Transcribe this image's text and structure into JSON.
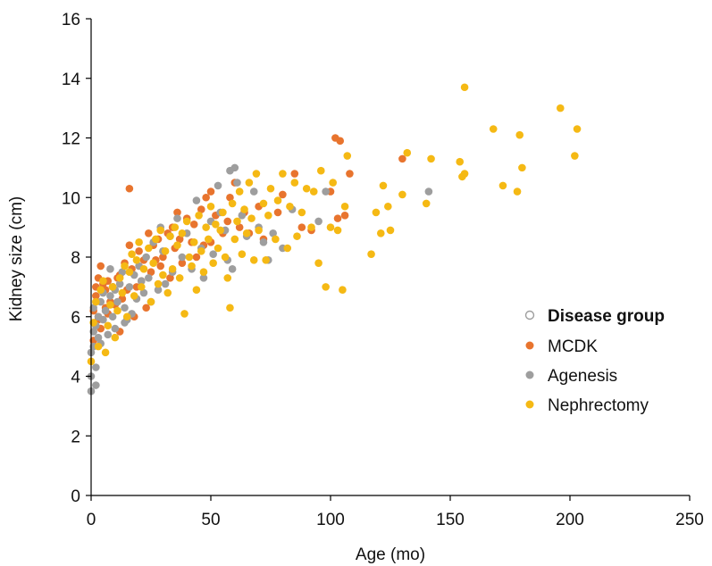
{
  "chart_data": {
    "type": "scatter",
    "title": "",
    "xlabel": "Age (mo)",
    "ylabel": "Kidney size (cm)",
    "xlim": [
      0,
      250
    ],
    "ylim": [
      0,
      16
    ],
    "xticks": [
      "0",
      "50",
      "100",
      "150",
      "200",
      "250"
    ],
    "yticks": [
      "0",
      "2",
      "4",
      "6",
      "8",
      "10",
      "12",
      "14",
      "16"
    ],
    "grid": false,
    "legend": {
      "title": "Disease group",
      "placement": "right"
    },
    "series": [
      {
        "name": "MCDK",
        "color": "#E8742E",
        "points": [
          [
            1,
            5.2
          ],
          [
            1,
            6.2
          ],
          [
            2,
            7.0
          ],
          [
            2,
            6.7
          ],
          [
            3,
            7.3
          ],
          [
            3,
            6.0
          ],
          [
            4,
            7.7
          ],
          [
            4,
            5.6
          ],
          [
            5,
            7.1
          ],
          [
            6,
            6.9
          ],
          [
            6,
            6.3
          ],
          [
            7,
            7.2
          ],
          [
            8,
            6.5
          ],
          [
            9,
            7.0
          ],
          [
            10,
            6.4
          ],
          [
            11,
            7.3
          ],
          [
            12,
            7.4
          ],
          [
            13,
            6.6
          ],
          [
            14,
            7.8
          ],
          [
            15,
            6.9
          ],
          [
            16,
            10.3
          ],
          [
            16,
            8.4
          ],
          [
            17,
            7.6
          ],
          [
            18,
            6.0
          ],
          [
            20,
            8.2
          ],
          [
            21,
            7.2
          ],
          [
            22,
            7.9
          ],
          [
            23,
            6.3
          ],
          [
            24,
            8.8
          ],
          [
            25,
            7.5
          ],
          [
            26,
            8.4
          ],
          [
            28,
            8.6
          ],
          [
            29,
            7.7
          ],
          [
            30,
            8.0
          ],
          [
            32,
            8.8
          ],
          [
            33,
            7.3
          ],
          [
            34,
            9.0
          ],
          [
            35,
            8.3
          ],
          [
            36,
            9.5
          ],
          [
            37,
            8.6
          ],
          [
            38,
            7.8
          ],
          [
            40,
            9.3
          ],
          [
            42,
            8.5
          ],
          [
            43,
            9.1
          ],
          [
            44,
            8.0
          ],
          [
            46,
            9.6
          ],
          [
            47,
            8.4
          ],
          [
            48,
            10.0
          ],
          [
            50,
            10.2
          ],
          [
            50,
            8.5
          ],
          [
            52,
            9.4
          ],
          [
            55,
            8.8
          ],
          [
            57,
            9.2
          ],
          [
            58,
            10.0
          ],
          [
            60,
            10.5
          ],
          [
            62,
            9.0
          ],
          [
            64,
            9.5
          ],
          [
            66,
            8.8
          ],
          [
            70,
            9.7
          ],
          [
            72,
            8.6
          ],
          [
            78,
            9.5
          ],
          [
            80,
            10.1
          ],
          [
            85,
            10.8
          ],
          [
            88,
            9.0
          ],
          [
            92,
            8.9
          ],
          [
            100,
            10.2
          ],
          [
            102,
            12.0
          ],
          [
            103,
            9.3
          ],
          [
            104,
            11.9
          ],
          [
            106,
            9.4
          ],
          [
            108,
            10.8
          ],
          [
            130,
            11.3
          ],
          [
            3,
            5.9
          ],
          [
            7,
            6.1
          ],
          [
            12,
            5.5
          ],
          [
            19,
            7.0
          ],
          [
            27,
            7.9
          ]
        ]
      },
      {
        "name": "Agenesis",
        "color": "#9E9E9E",
        "points": [
          [
            0,
            3.5
          ],
          [
            0,
            4.0
          ],
          [
            0,
            4.8
          ],
          [
            1,
            5.0
          ],
          [
            1,
            5.5
          ],
          [
            1,
            6.3
          ],
          [
            2,
            3.7
          ],
          [
            2,
            4.3
          ],
          [
            2,
            5.7
          ],
          [
            3,
            6.0
          ],
          [
            3,
            5.3
          ],
          [
            4,
            6.5
          ],
          [
            4,
            5.1
          ],
          [
            5,
            5.9
          ],
          [
            5,
            6.8
          ],
          [
            6,
            6.2
          ],
          [
            7,
            5.4
          ],
          [
            8,
            7.6
          ],
          [
            8,
            6.7
          ],
          [
            9,
            6.0
          ],
          [
            10,
            6.9
          ],
          [
            10,
            5.6
          ],
          [
            11,
            6.5
          ],
          [
            12,
            7.1
          ],
          [
            13,
            7.5
          ],
          [
            14,
            6.3
          ],
          [
            15,
            5.9
          ],
          [
            16,
            7.0
          ],
          [
            17,
            6.1
          ],
          [
            18,
            7.4
          ],
          [
            19,
            6.6
          ],
          [
            20,
            7.7
          ],
          [
            21,
            7.2
          ],
          [
            22,
            6.8
          ],
          [
            23,
            8.0
          ],
          [
            24,
            7.3
          ],
          [
            26,
            8.5
          ],
          [
            28,
            6.9
          ],
          [
            29,
            9.0
          ],
          [
            30,
            8.2
          ],
          [
            31,
            7.1
          ],
          [
            33,
            8.7
          ],
          [
            34,
            7.5
          ],
          [
            36,
            9.3
          ],
          [
            38,
            8.0
          ],
          [
            40,
            8.8
          ],
          [
            42,
            7.6
          ],
          [
            44,
            9.9
          ],
          [
            46,
            8.3
          ],
          [
            47,
            7.3
          ],
          [
            50,
            9.2
          ],
          [
            51,
            8.1
          ],
          [
            53,
            10.4
          ],
          [
            54,
            9.5
          ],
          [
            56,
            8.9
          ],
          [
            57,
            7.9
          ],
          [
            58,
            10.9
          ],
          [
            59,
            7.6
          ],
          [
            60,
            11.0
          ],
          [
            61,
            10.5
          ],
          [
            63,
            9.4
          ],
          [
            65,
            8.7
          ],
          [
            68,
            10.2
          ],
          [
            70,
            9.0
          ],
          [
            72,
            8.5
          ],
          [
            74,
            7.9
          ],
          [
            76,
            8.8
          ],
          [
            80,
            8.3
          ],
          [
            84,
            9.6
          ],
          [
            95,
            9.2
          ],
          [
            98,
            10.2
          ],
          [
            141,
            10.2
          ],
          [
            9,
            7.0
          ],
          [
            14,
            5.8
          ],
          [
            25,
            6.5
          ]
        ]
      },
      {
        "name": "Nephrectomy",
        "color": "#F5B914",
        "points": [
          [
            0,
            4.5
          ],
          [
            1,
            5.8
          ],
          [
            2,
            6.5
          ],
          [
            3,
            5.0
          ],
          [
            4,
            6.9
          ],
          [
            5,
            7.2
          ],
          [
            6,
            4.8
          ],
          [
            7,
            5.7
          ],
          [
            8,
            6.4
          ],
          [
            9,
            7.0
          ],
          [
            10,
            5.3
          ],
          [
            11,
            6.2
          ],
          [
            12,
            7.3
          ],
          [
            13,
            6.8
          ],
          [
            14,
            7.7
          ],
          [
            15,
            6.0
          ],
          [
            16,
            7.5
          ],
          [
            17,
            8.1
          ],
          [
            18,
            6.7
          ],
          [
            19,
            7.9
          ],
          [
            20,
            8.5
          ],
          [
            21,
            7.0
          ],
          [
            22,
            7.6
          ],
          [
            24,
            8.3
          ],
          [
            25,
            6.5
          ],
          [
            26,
            7.8
          ],
          [
            27,
            8.6
          ],
          [
            28,
            7.1
          ],
          [
            29,
            8.9
          ],
          [
            30,
            7.4
          ],
          [
            31,
            8.2
          ],
          [
            32,
            6.8
          ],
          [
            33,
            8.7
          ],
          [
            34,
            7.6
          ],
          [
            35,
            9.0
          ],
          [
            36,
            8.4
          ],
          [
            37,
            7.3
          ],
          [
            38,
            8.8
          ],
          [
            39,
            6.1
          ],
          [
            40,
            9.2
          ],
          [
            41,
            8.0
          ],
          [
            42,
            7.7
          ],
          [
            43,
            8.5
          ],
          [
            44,
            6.9
          ],
          [
            45,
            9.4
          ],
          [
            46,
            8.2
          ],
          [
            47,
            7.5
          ],
          [
            48,
            9.0
          ],
          [
            49,
            8.6
          ],
          [
            50,
            9.7
          ],
          [
            51,
            7.8
          ],
          [
            52,
            9.1
          ],
          [
            53,
            8.3
          ],
          [
            54,
            8.9
          ],
          [
            55,
            9.5
          ],
          [
            56,
            8.0
          ],
          [
            57,
            7.3
          ],
          [
            58,
            6.3
          ],
          [
            59,
            9.8
          ],
          [
            60,
            8.6
          ],
          [
            61,
            9.2
          ],
          [
            62,
            10.2
          ],
          [
            63,
            8.1
          ],
          [
            64,
            9.6
          ],
          [
            65,
            8.8
          ],
          [
            66,
            10.5
          ],
          [
            67,
            9.3
          ],
          [
            68,
            7.9
          ],
          [
            69,
            10.8
          ],
          [
            70,
            8.9
          ],
          [
            72,
            9.8
          ],
          [
            73,
            7.9
          ],
          [
            74,
            9.4
          ],
          [
            75,
            10.3
          ],
          [
            77,
            8.6
          ],
          [
            78,
            9.9
          ],
          [
            80,
            10.8
          ],
          [
            82,
            8.3
          ],
          [
            83,
            9.7
          ],
          [
            85,
            10.5
          ],
          [
            86,
            8.7
          ],
          [
            88,
            9.5
          ],
          [
            90,
            10.3
          ],
          [
            92,
            9.0
          ],
          [
            93,
            10.2
          ],
          [
            95,
            7.8
          ],
          [
            96,
            10.9
          ],
          [
            98,
            7.0
          ],
          [
            100,
            9.0
          ],
          [
            101,
            10.5
          ],
          [
            103,
            8.9
          ],
          [
            105,
            6.9
          ],
          [
            106,
            9.7
          ],
          [
            107,
            11.4
          ],
          [
            117,
            8.1
          ],
          [
            119,
            9.5
          ],
          [
            121,
            8.8
          ],
          [
            122,
            10.4
          ],
          [
            124,
            9.7
          ],
          [
            125,
            8.9
          ],
          [
            130,
            10.1
          ],
          [
            132,
            11.5
          ],
          [
            140,
            9.8
          ],
          [
            142,
            11.3
          ],
          [
            154,
            11.2
          ],
          [
            155,
            10.7
          ],
          [
            156,
            10.8
          ],
          [
            156,
            13.7
          ],
          [
            168,
            12.3
          ],
          [
            172,
            10.4
          ],
          [
            178,
            10.2
          ],
          [
            179,
            12.1
          ],
          [
            180,
            11.0
          ],
          [
            196,
            13.0
          ],
          [
            202,
            11.4
          ],
          [
            203,
            12.3
          ]
        ]
      }
    ]
  },
  "legend_title_color": "#9E9E9E"
}
